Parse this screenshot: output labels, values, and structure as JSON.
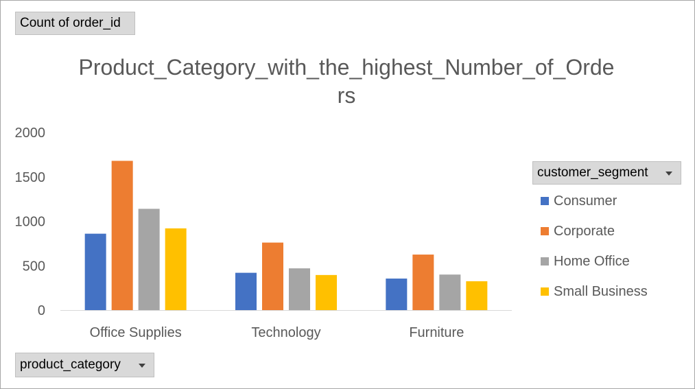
{
  "pivot": {
    "values_field": "Count of order_id",
    "legend_field": "customer_segment",
    "axis_field": "product_category"
  },
  "chart_data": {
    "type": "bar",
    "title": "Product_Category_with_the_highest_Number_of_Orders",
    "xlabel": "",
    "ylabel": "",
    "categories": [
      "Office Supplies",
      "Technology",
      "Furniture"
    ],
    "series": [
      {
        "name": "Consumer",
        "color": "#4472C4",
        "values": [
          860,
          420,
          355
        ]
      },
      {
        "name": "Corporate",
        "color": "#ED7D31",
        "values": [
          1680,
          760,
          625
        ]
      },
      {
        "name": "Home Office",
        "color": "#A5A5A5",
        "values": [
          1140,
          470,
          400
        ]
      },
      {
        "name": "Small Business",
        "color": "#FFC000",
        "values": [
          920,
          395,
          325
        ]
      }
    ],
    "ylim": [
      0,
      2000
    ],
    "yticks": [
      0,
      500,
      1000,
      1500,
      2000
    ],
    "grid": false,
    "legend_position": "right"
  }
}
